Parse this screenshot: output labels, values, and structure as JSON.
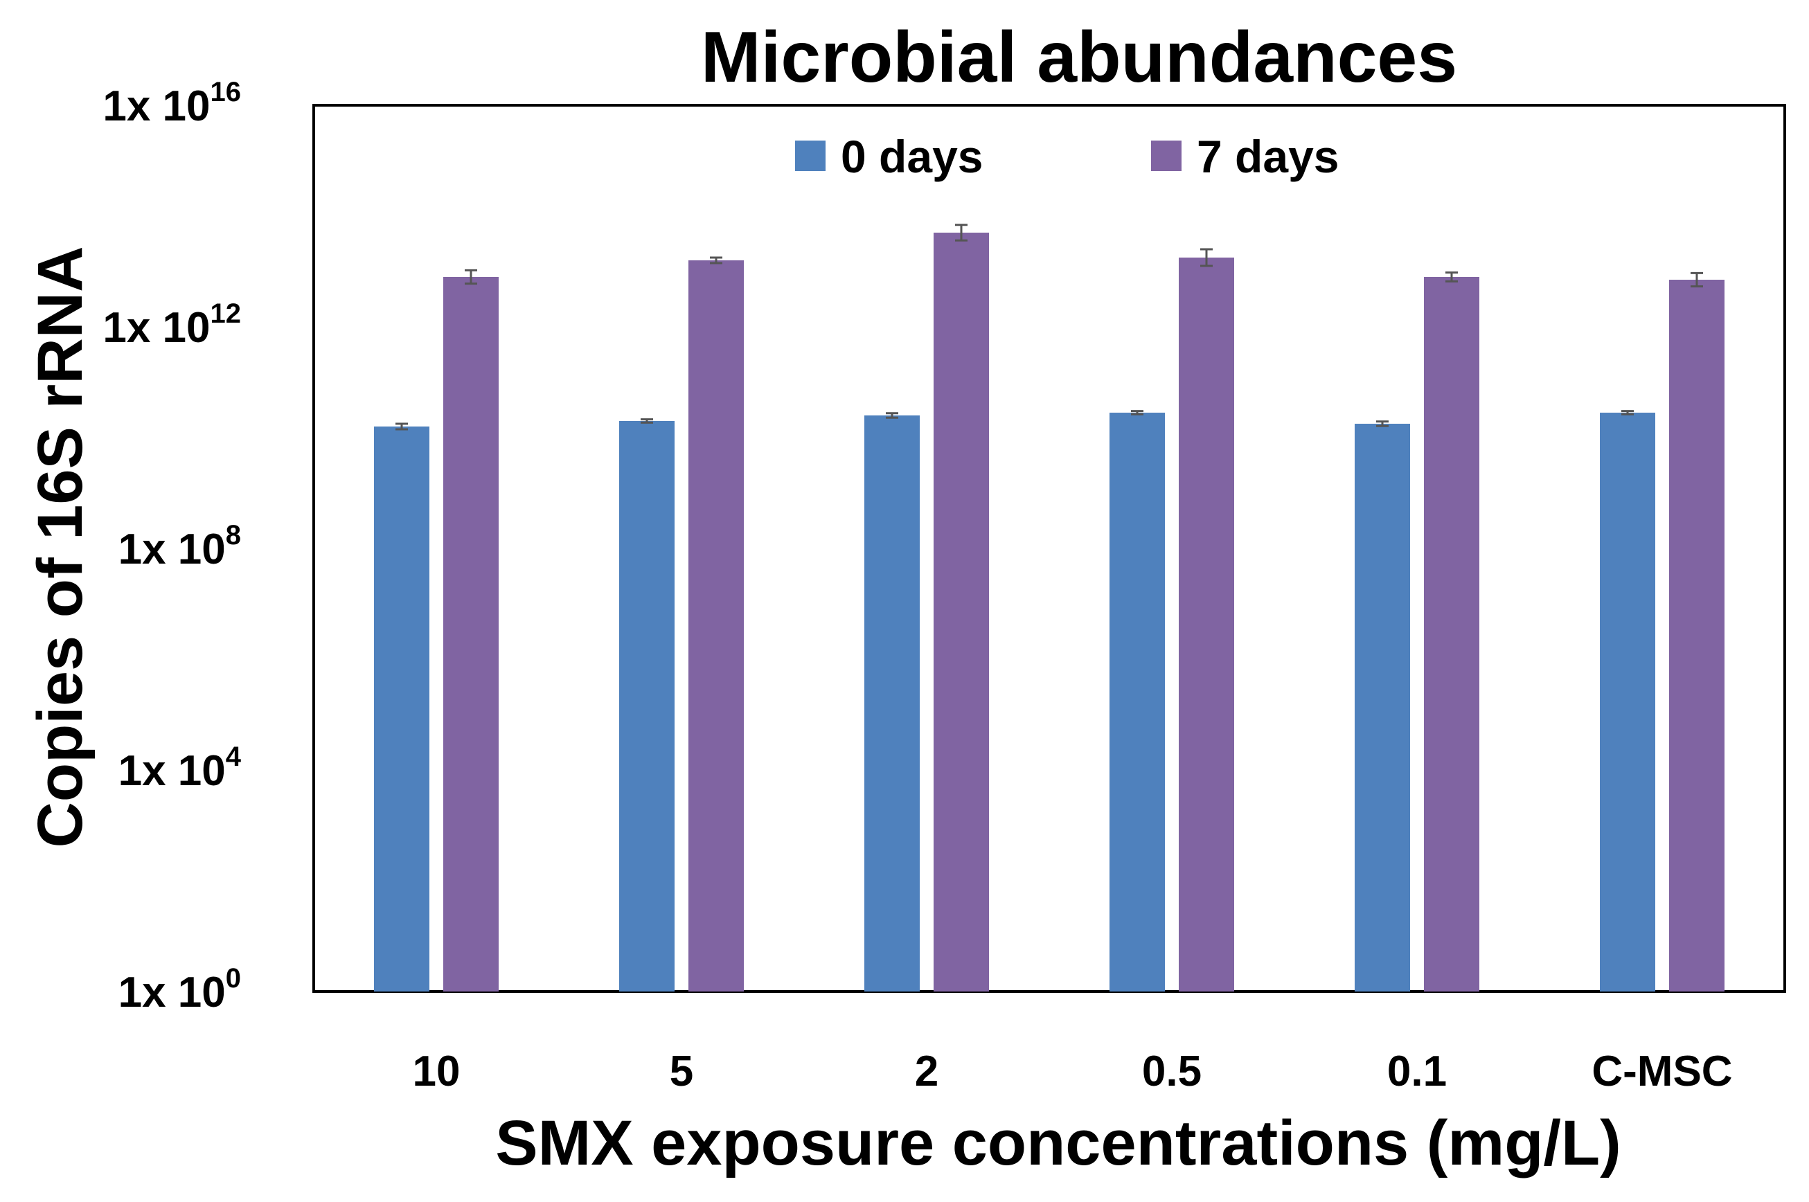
{
  "chart_data": {
    "type": "bar",
    "title": "Microbial abundances",
    "xlabel": "SMX exposure concentrations (mg/L)",
    "ylabel": "Copies of 16S rRNA",
    "yscale": "log10",
    "ylim": [
      1,
      1e+16
    ],
    "yticks": [
      {
        "base": "1x 10",
        "exp": "0"
      },
      {
        "base": "1x 10",
        "exp": "4"
      },
      {
        "base": "1x 10",
        "exp": "8"
      },
      {
        "base": "1x 10",
        "exp": "12"
      },
      {
        "base": "1x 10",
        "exp": "16"
      }
    ],
    "ytick_values": [
      0,
      4,
      8,
      12,
      16
    ],
    "grid": false,
    "legend_position": "top-center",
    "categories": [
      "10",
      "5",
      "2",
      "0.5",
      "0.1",
      "C-MSC"
    ],
    "series": [
      {
        "name": "0 days",
        "color": "#4f81bd",
        "log10_values": [
          10.2,
          10.3,
          10.4,
          10.45,
          10.25,
          10.45
        ],
        "log10_error": [
          0.05,
          0.03,
          0.04,
          0.03,
          0.04,
          0.03
        ]
      },
      {
        "name": "7 days",
        "color": "#8064a2",
        "log10_values": [
          12.9,
          13.2,
          13.7,
          13.25,
          12.9,
          12.85
        ],
        "log10_error": [
          0.12,
          0.05,
          0.14,
          0.15,
          0.08,
          0.12
        ]
      }
    ]
  }
}
